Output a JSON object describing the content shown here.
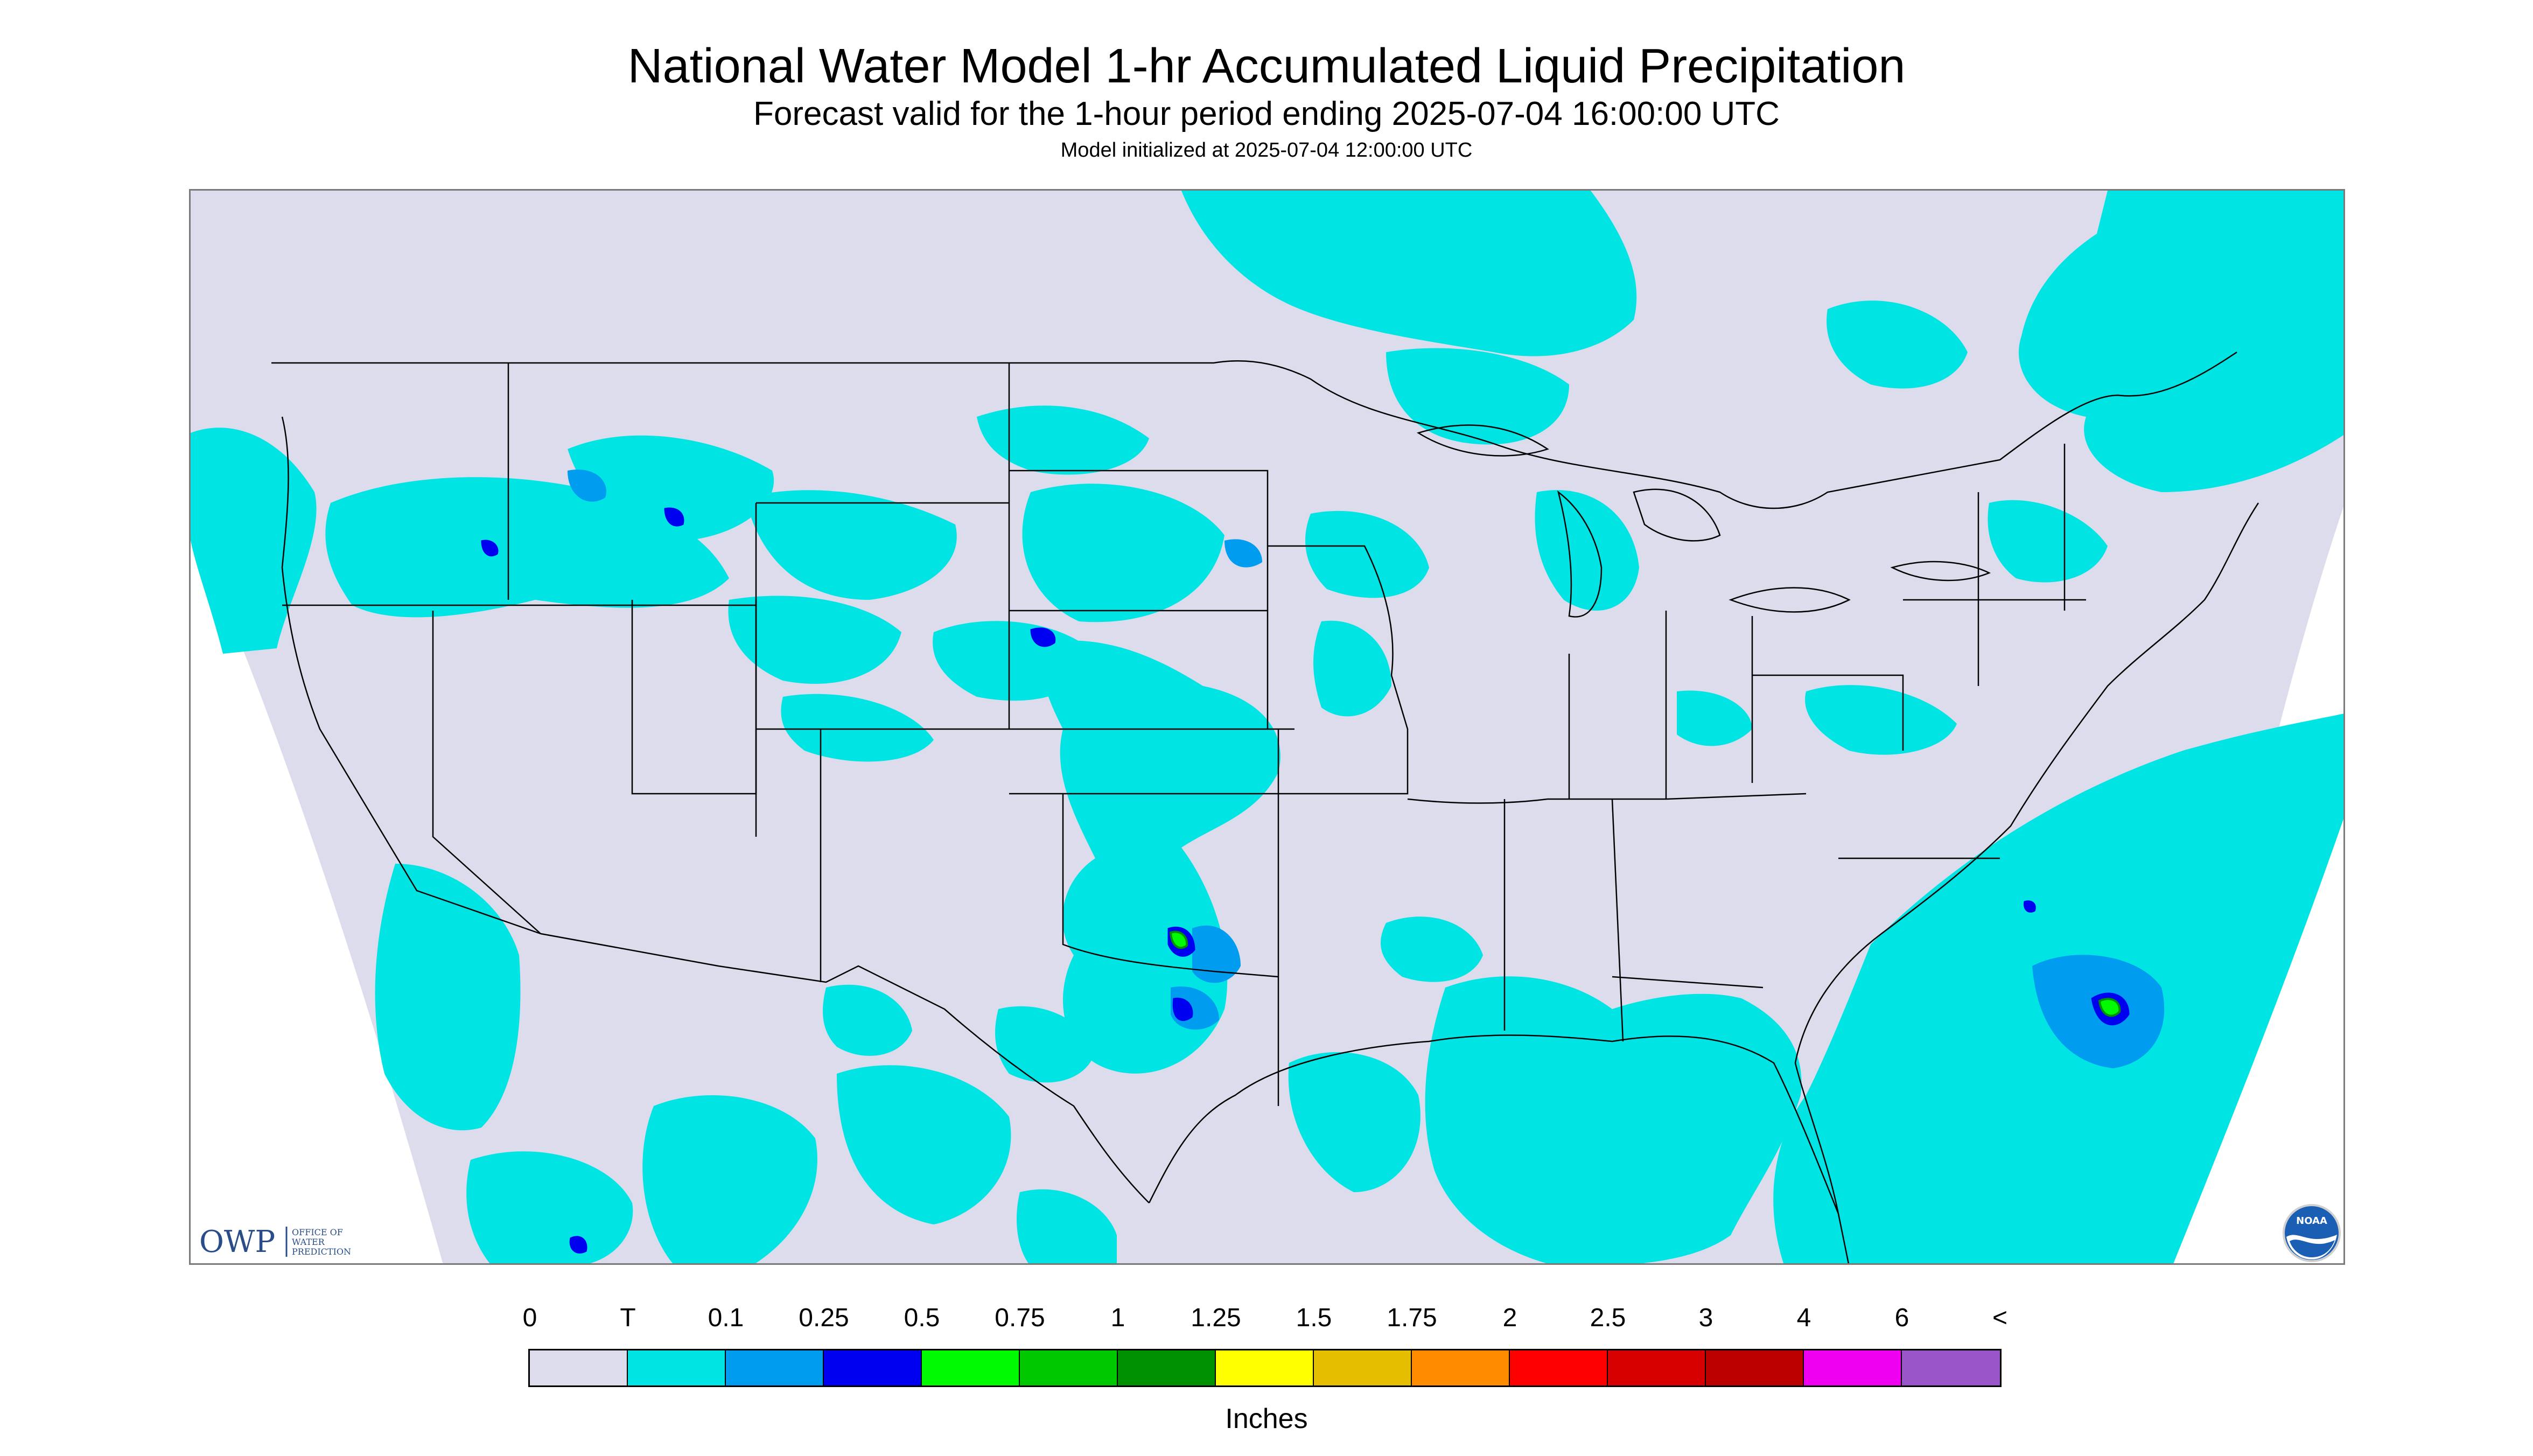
{
  "header": {
    "title": "National Water Model 1-hr Accumulated Liquid Precipitation",
    "subtitle": "Forecast valid for the 1-hour period ending 2025-07-04 16:00:00 UTC",
    "init": "Model initialized at 2025-07-04 12:00:00 UTC"
  },
  "logos": {
    "owp_mark": "OWP",
    "owp_text": [
      "OFFICE OF",
      "WATER",
      "PREDICTION"
    ],
    "noaa_text": "NOAA"
  },
  "legend": {
    "ticks": [
      "0",
      "T",
      "0.1",
      "0.25",
      "0.5",
      "0.75",
      "1",
      "1.25",
      "1.5",
      "1.75",
      "2",
      "2.5",
      "3",
      "4",
      "6",
      "<"
    ],
    "colors": [
      "#dcdcec",
      "#00e4e4",
      "#009cf0",
      "#0000f0",
      "#00fa00",
      "#00c800",
      "#009100",
      "#ffff00",
      "#e6be00",
      "#ff8c00",
      "#ff0000",
      "#d70000",
      "#bc0000",
      "#f000f0",
      "#9a55c8"
    ],
    "units": "Inches"
  },
  "map": {
    "domain_color": "#dcdcec",
    "precip_color": "#00e4e4",
    "light_color": "#009cf0",
    "heavy_color": "#0000f0",
    "green_color": "#00fa00",
    "dark_green_color": "#009100",
    "border_color": "#000000"
  }
}
